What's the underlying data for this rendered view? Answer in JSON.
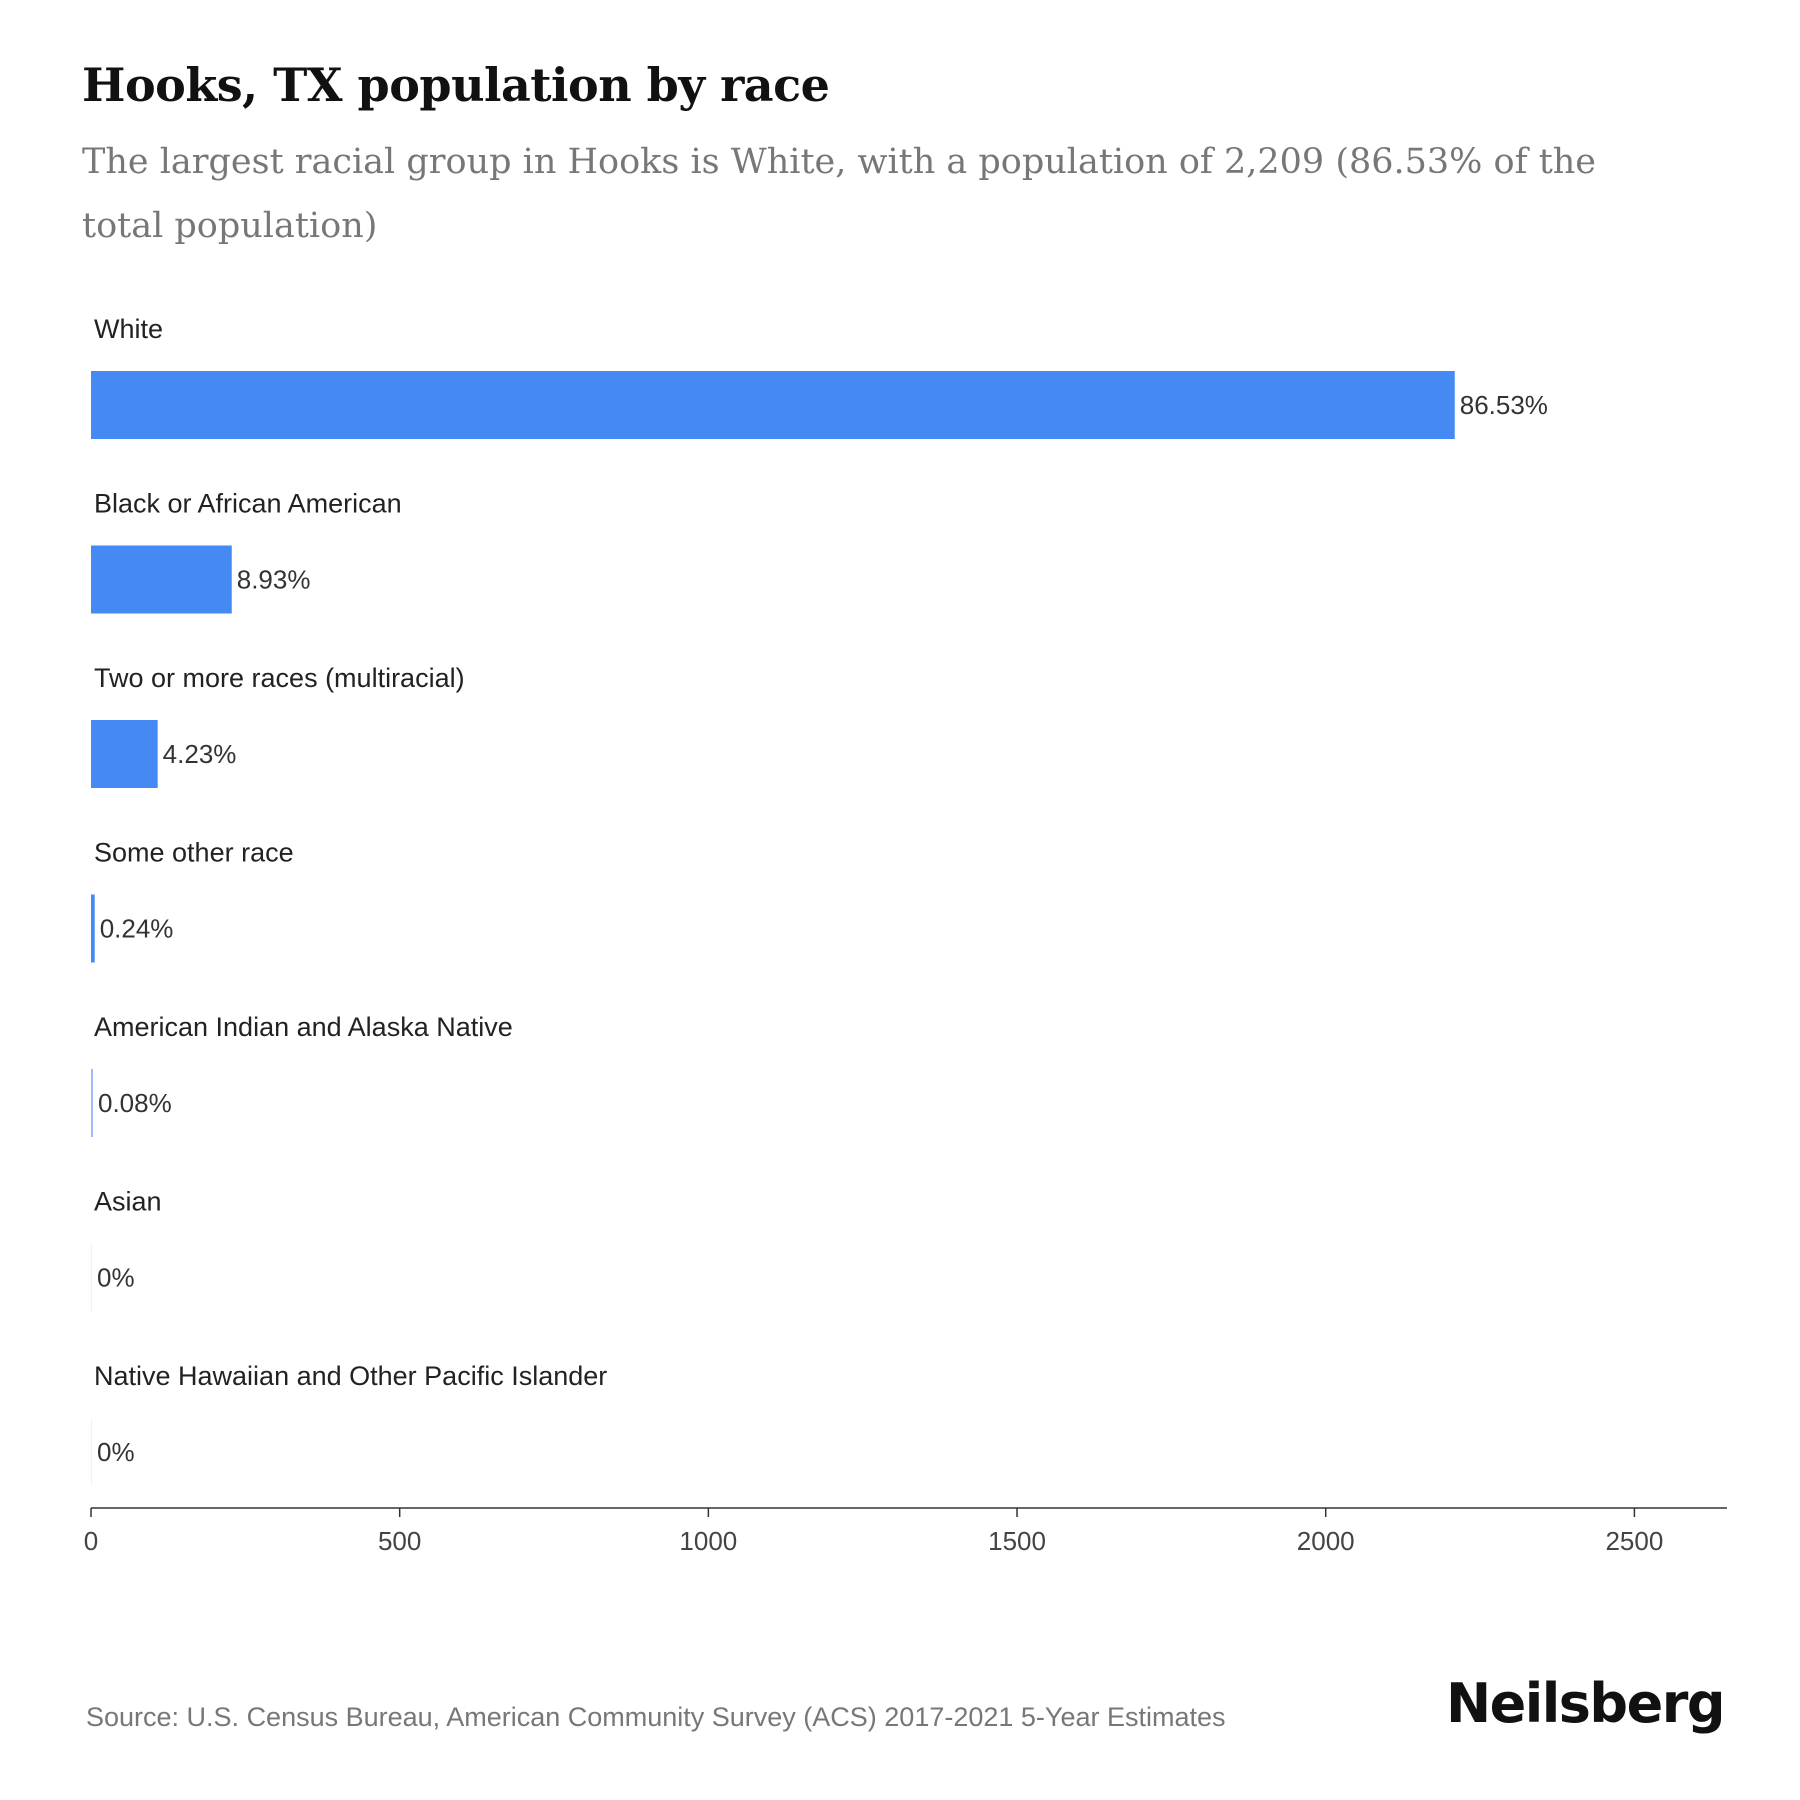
{
  "header": {
    "title": "Hooks, TX population by race",
    "subtitle": "The largest racial group in Hooks is White, with a population of 2,209 (86.53% of the total population)"
  },
  "footer": {
    "source": "Source: U.S. Census Bureau, American Community Survey (ACS) 2017-2021 5-Year Estimates",
    "brand": "Neilsberg"
  },
  "chart_data": {
    "type": "bar",
    "orientation": "horizontal",
    "title": "Hooks, TX population by race",
    "subtitle": "The largest racial group in Hooks is White, with a population of 2,209 (86.53% of the total population)",
    "categories": [
      "White",
      "Black or African American",
      "Two or more races (multiracial)",
      "Some other race",
      "American Indian and Alaska Native",
      "Asian",
      "Native Hawaiian and Other Pacific Islander"
    ],
    "values": [
      2209,
      228,
      108,
      6,
      2,
      0,
      0
    ],
    "value_labels": [
      "86.53%",
      "8.93%",
      "4.23%",
      "0.24%",
      "0.08%",
      "0%",
      "0%"
    ],
    "xlim": [
      0,
      2650
    ],
    "xticks": [
      0,
      500,
      1000,
      1500,
      2000,
      2500
    ],
    "xlabel": "",
    "ylabel": "",
    "grid": false,
    "bar_color": "#4589F3"
  }
}
